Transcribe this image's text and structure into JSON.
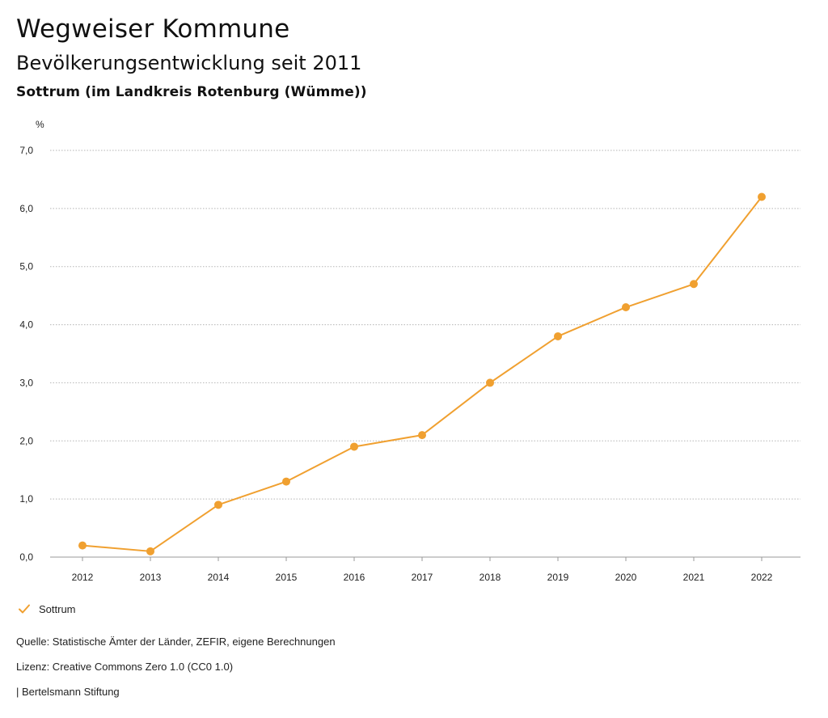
{
  "header": {
    "title": "Wegweiser Kommune",
    "subtitle": "Bevölkerungsentwicklung seit 2011",
    "region": "Sottrum (im Landkreis Rotenburg (Wümme))"
  },
  "chart_data": {
    "type": "line",
    "title": "Bevölkerungsentwicklung seit 2011",
    "ylabel": "%",
    "xlabel": "",
    "ylim": [
      0,
      7
    ],
    "yticks": [
      0,
      1,
      2,
      3,
      4,
      5,
      6,
      7
    ],
    "ytick_labels": [
      "0,0",
      "1,0",
      "2,0",
      "3,0",
      "4,0",
      "5,0",
      "6,0",
      "7,0"
    ],
    "categories": [
      "2012",
      "2013",
      "2014",
      "2015",
      "2016",
      "2017",
      "2018",
      "2019",
      "2020",
      "2021",
      "2022"
    ],
    "series": [
      {
        "name": "Sottrum",
        "values": [
          0.2,
          0.1,
          0.9,
          1.3,
          1.9,
          2.1,
          3.0,
          3.8,
          4.3,
          4.7,
          6.2
        ]
      }
    ],
    "grid": true,
    "legend": "bottom-left"
  },
  "colors": {
    "series": "#f0a030",
    "grid": "#b5b5b5",
    "axis": "#999999"
  },
  "legend": {
    "label": "Sottrum",
    "icon": "check-icon"
  },
  "footer": {
    "source": "Quelle: Statistische Ämter der Länder, ZEFIR, eigene Berechnungen",
    "license": "Lizenz: Creative Commons Zero 1.0 (CC0 1.0)",
    "credit": "| Bertelsmann Stiftung"
  }
}
